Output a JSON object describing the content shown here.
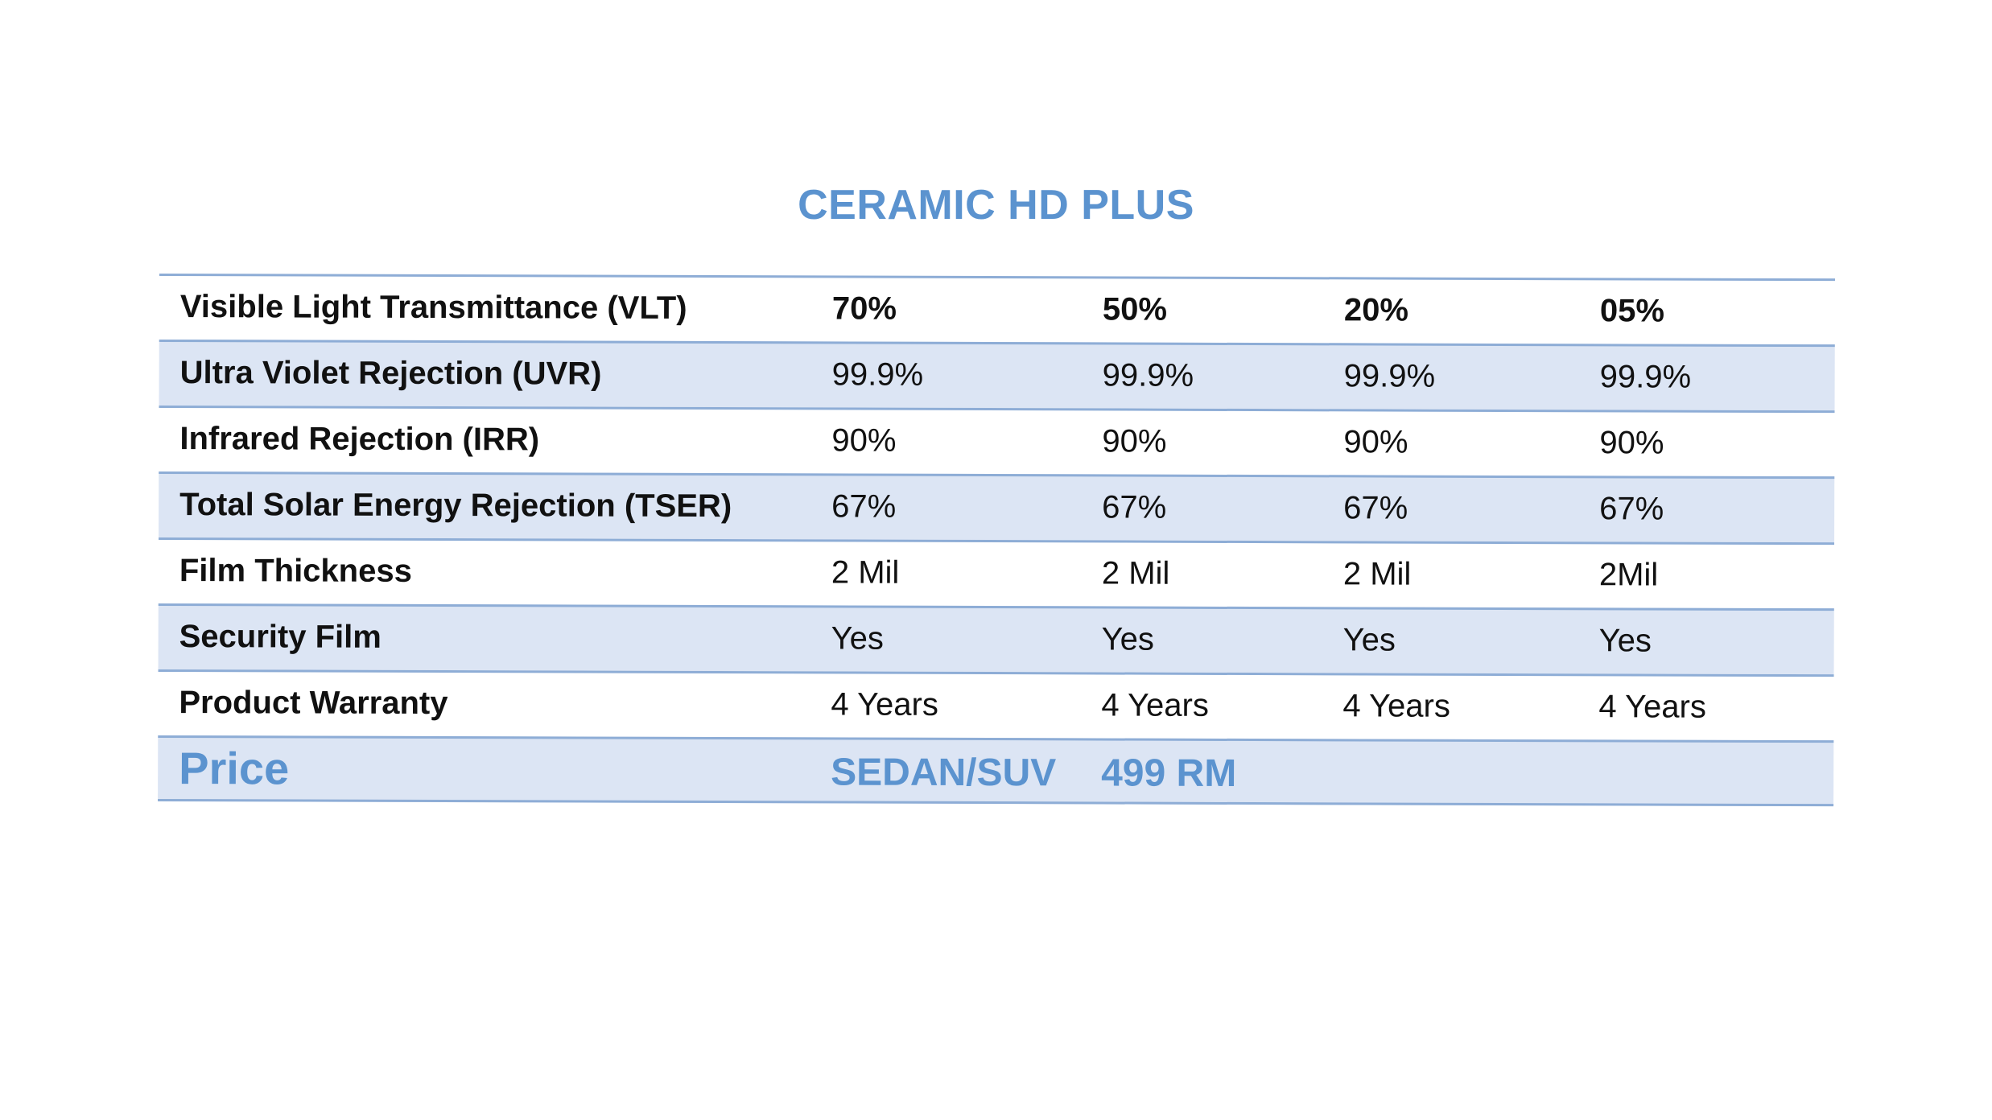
{
  "title": "CERAMIC HD PLUS",
  "colors": {
    "accent": "#5b93cf",
    "row_shade": "#dce5f4",
    "rule": "#8eadd6"
  },
  "rows": [
    {
      "label": "Visible Light Transmittance (VLT)",
      "values": [
        "70%",
        "50%",
        "20%",
        "05%"
      ]
    },
    {
      "label": "Ultra Violet Rejection (UVR)",
      "values": [
        "99.9%",
        "99.9%",
        "99.9%",
        "99.9%"
      ]
    },
    {
      "label": "Infrared Rejection (IRR)",
      "values": [
        "90%",
        "90%",
        "90%",
        "90%"
      ]
    },
    {
      "label": "Total Solar Energy Rejection (TSER)",
      "values": [
        "67%",
        "67%",
        "67%",
        "67%"
      ]
    },
    {
      "label": "Film Thickness",
      "values": [
        "2 Mil",
        "2 Mil",
        "2 Mil",
        "2Mil"
      ]
    },
    {
      "label": "Security Film",
      "values": [
        "Yes",
        "Yes",
        "Yes",
        "Yes"
      ]
    },
    {
      "label": "Product Warranty",
      "values": [
        "4 Years",
        "4 Years",
        "4 Years",
        "4 Years"
      ]
    }
  ],
  "price": {
    "label": "Price",
    "vehicle": "SEDAN/SUV",
    "amount": "499 RM"
  }
}
